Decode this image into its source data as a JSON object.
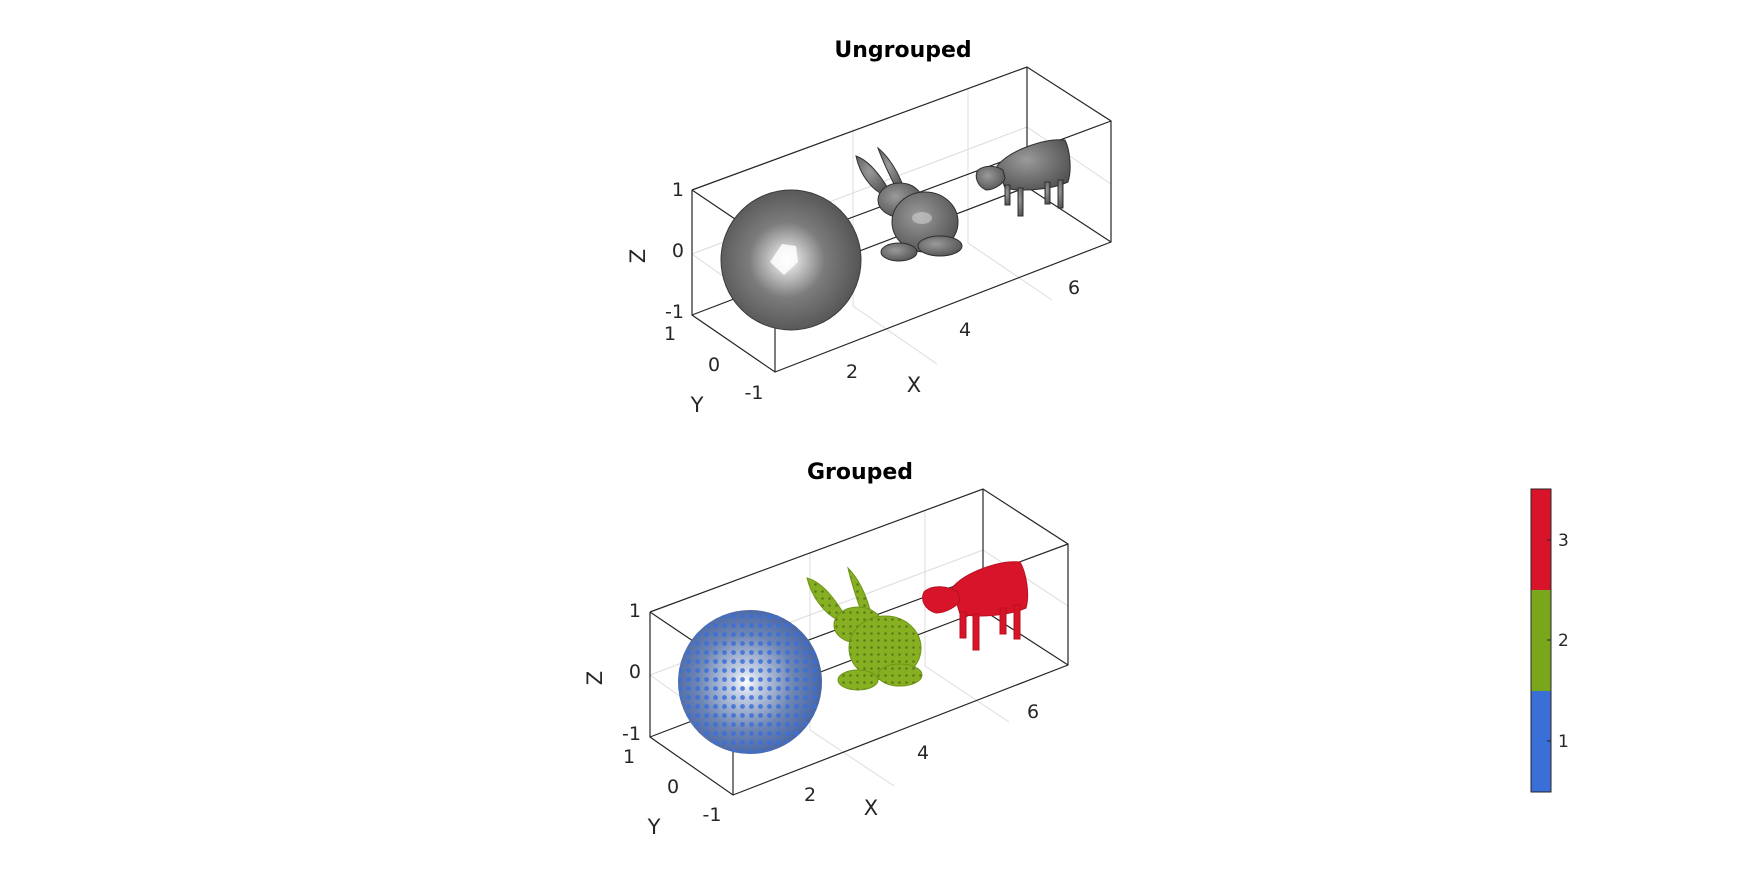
{
  "chart_data": [
    {
      "type": "scatter3d",
      "title": "Ungrouped",
      "xlabel": "X",
      "ylabel": "Y",
      "zlabel": "Z",
      "xticks": [
        "2",
        "4",
        "6"
      ],
      "yticks": [
        "-1",
        "0",
        "1"
      ],
      "zticks": [
        "-1",
        "0",
        "1"
      ],
      "xlim": [
        0,
        7
      ],
      "ylim": [
        -1,
        1
      ],
      "zlim": [
        -1,
        1
      ],
      "grid": true,
      "objects": [
        {
          "name": "sphere",
          "x": 1,
          "y": 0,
          "z": 0,
          "color": "#6b6b6b"
        },
        {
          "name": "bunny",
          "x": 3.5,
          "y": 0,
          "z": 0,
          "color": "#5a5a5a"
        },
        {
          "name": "cow",
          "x": 6,
          "y": 0,
          "z": 0,
          "color": "#5a5a5a"
        }
      ]
    },
    {
      "type": "scatter3d",
      "title": "Grouped",
      "xlabel": "X",
      "ylabel": "Y",
      "zlabel": "Z",
      "xticks": [
        "2",
        "4",
        "6"
      ],
      "yticks": [
        "-1",
        "0",
        "1"
      ],
      "zticks": [
        "-1",
        "0",
        "1"
      ],
      "xlim": [
        0,
        7
      ],
      "ylim": [
        -1,
        1
      ],
      "zlim": [
        -1,
        1
      ],
      "grid": true,
      "objects": [
        {
          "name": "sphere",
          "x": 1,
          "y": 0,
          "z": 0,
          "group": 1,
          "color": "#3a6fd8"
        },
        {
          "name": "bunny",
          "x": 3.5,
          "y": 0,
          "z": 0,
          "group": 2,
          "color": "#7aa61c"
        },
        {
          "name": "cow",
          "x": 6,
          "y": 0,
          "z": 0,
          "group": 3,
          "color": "#d8142a"
        }
      ],
      "colorbar": {
        "ticks": [
          "1",
          "2",
          "3"
        ],
        "colors": [
          "#3a6fd8",
          "#7aa61c",
          "#d8142a"
        ]
      }
    }
  ]
}
